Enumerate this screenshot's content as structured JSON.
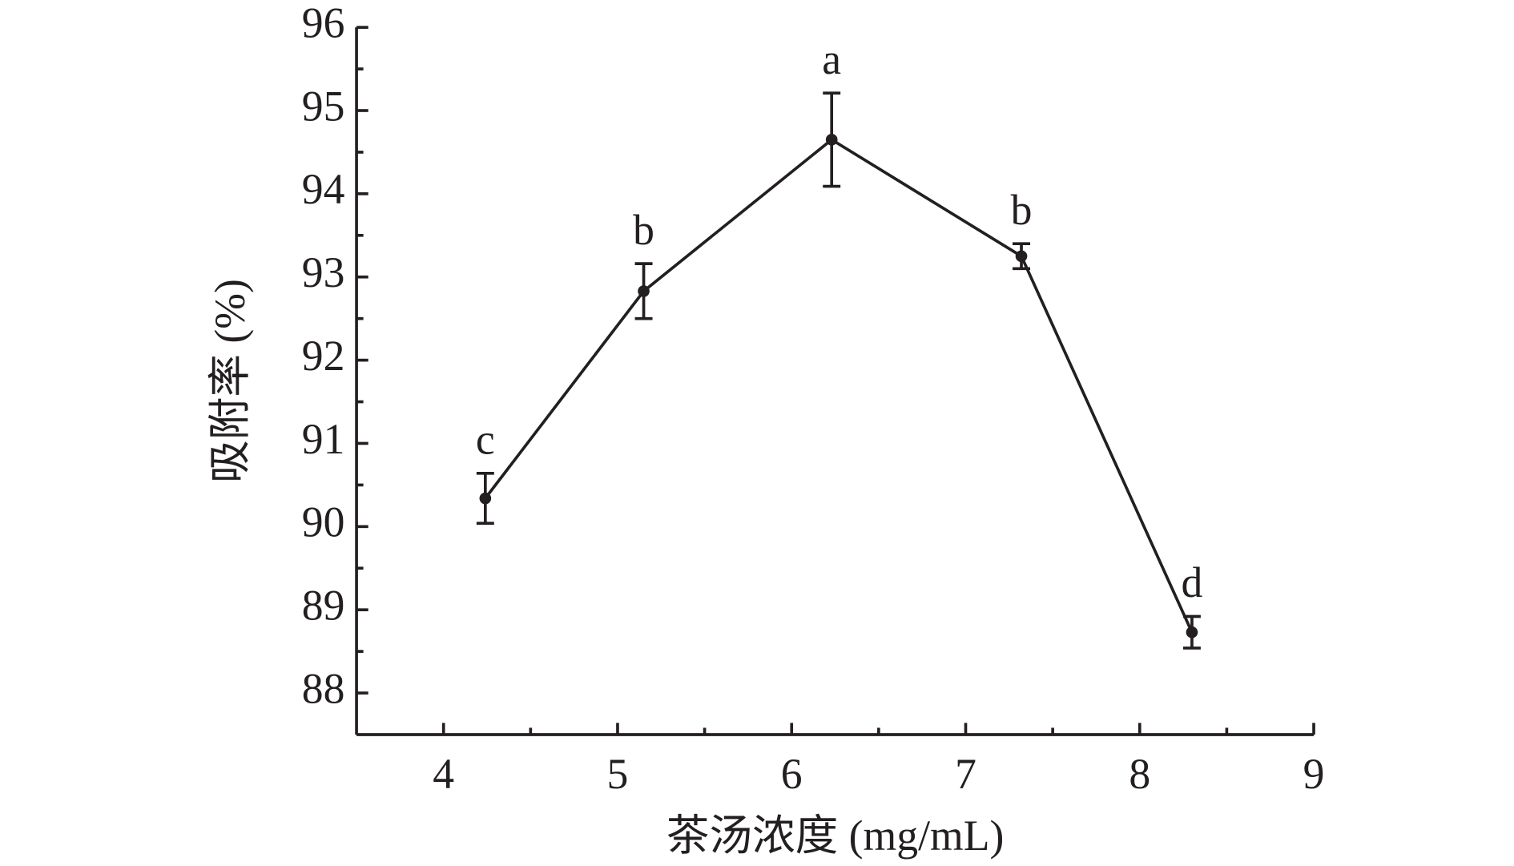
{
  "chart_data": {
    "type": "line",
    "xlabel": "茶汤浓度 (mg/mL)",
    "ylabel": "吸附率 (%)",
    "x": [
      4.24,
      5.15,
      6.23,
      7.32,
      8.3
    ],
    "series": [
      {
        "values": [
          90.34,
          92.83,
          94.65,
          93.25,
          88.73
        ],
        "errors": [
          0.3,
          0.33,
          0.56,
          0.15,
          0.19
        ],
        "labels": [
          "c",
          "b",
          "a",
          "b",
          "d"
        ],
        "color": "#231f20"
      }
    ],
    "xlim": [
      3.5,
      9
    ],
    "ylim": [
      87.5,
      96
    ],
    "xticks": [
      4,
      5,
      6,
      7,
      8,
      9
    ],
    "yticks": [
      88,
      89,
      90,
      91,
      92,
      93,
      94,
      95,
      96
    ],
    "xminorticks": [
      4.5,
      5.5,
      6.5,
      7.5,
      8.5
    ],
    "yminorticks": [
      88.5,
      89.5,
      90.5,
      91.5,
      92.5,
      93.5,
      94.5,
      95.5
    ]
  }
}
